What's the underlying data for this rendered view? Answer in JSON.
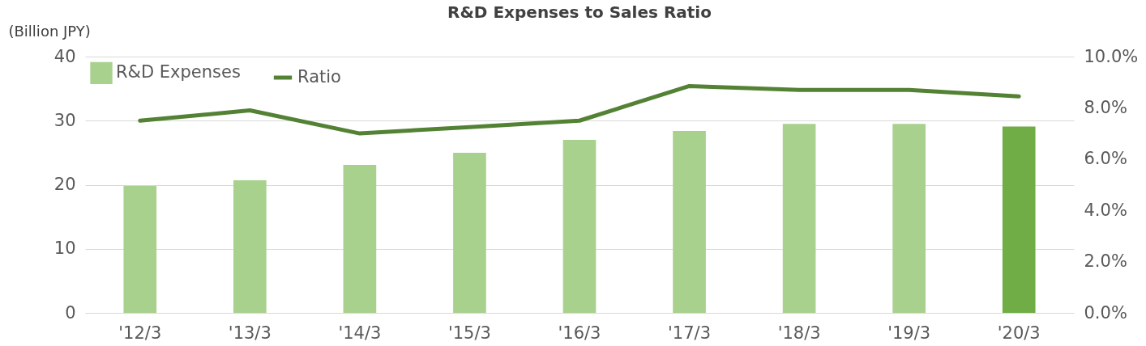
{
  "chart_data": {
    "type": "bar",
    "title": "R&D Expenses to Sales Ratio",
    "ylabel": "(Billion JPY)",
    "categories": [
      "'12/3",
      "'13/3",
      "'14/3",
      "'15/3",
      "'16/3",
      "'17/3",
      "'18/3",
      "'19/3",
      "'20/3"
    ],
    "series": [
      {
        "name": "R&D Expenses",
        "color": "#a9d18e",
        "colors": [
          "#a9d18e",
          "#a9d18e",
          "#a9d18e",
          "#a9d18e",
          "#a9d18e",
          "#a9d18e",
          "#a9d18e",
          "#a9d18e",
          "#70ad47"
        ],
        "values": [
          19.8,
          20.7,
          23.1,
          25.0,
          27.0,
          28.4,
          29.5,
          29.5,
          29.1
        ]
      },
      {
        "name": "Ratio",
        "type": "line",
        "axis": "y2",
        "color": "#548235",
        "values": [
          7.5,
          7.9,
          7.0,
          7.25,
          7.5,
          8.85,
          8.7,
          8.7,
          8.45
        ]
      }
    ],
    "ylim": [
      0,
      40
    ],
    "yticks": [
      0,
      10,
      20,
      30,
      40
    ],
    "y2lim": [
      0,
      10
    ],
    "y2ticks": [
      {
        "value": 0,
        "label": "0.0%"
      },
      {
        "value": 2,
        "label": "2.0%"
      },
      {
        "value": 4,
        "label": "4.0%"
      },
      {
        "value": 6,
        "label": "6.0%"
      },
      {
        "value": 8,
        "label": "8.0%"
      },
      {
        "value": 10,
        "label": "10.0%"
      }
    ],
    "grid": "y",
    "legend": "top left"
  }
}
